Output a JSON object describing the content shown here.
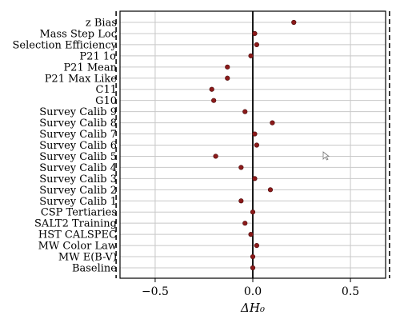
{
  "chart_data": {
    "type": "scatter",
    "title": "",
    "xlabel": "ΔH₀",
    "ylabel": "",
    "xlim": [
      -0.68,
      0.68
    ],
    "xticks": [
      -0.5,
      0.0,
      0.5
    ],
    "xtick_labels": [
      "−0.5",
      "0.0",
      "0.5"
    ],
    "grid": true,
    "reference_lines": [
      {
        "x": -0.7,
        "style": "dashed"
      },
      {
        "x": 0.0,
        "style": "solid"
      },
      {
        "x": 0.7,
        "style": "dashed"
      }
    ],
    "categories": [
      "z Bias",
      "Mass Step Loc",
      "Selection Efficiency",
      "P21 1σ",
      "P21 Mean",
      "P21 Max Like",
      "C11",
      "G10",
      "Survey Calib 9",
      "Survey Calib 8",
      "Survey Calib 7",
      "Survey Calib 6",
      "Survey Calib 5",
      "Survey Calib 4",
      "Survey Calib 3",
      "Survey Calib 2",
      "Survey Calib 1",
      "CSP Tertiaries",
      "SALT2 Training",
      "HST CALSPEC",
      "MW Color Law",
      "MW E(B-V)",
      "Baseline"
    ],
    "values": [
      0.21,
      0.01,
      0.02,
      -0.01,
      -0.13,
      -0.13,
      -0.21,
      -0.2,
      -0.04,
      0.1,
      0.01,
      0.02,
      -0.19,
      -0.06,
      0.01,
      0.09,
      -0.06,
      0.0,
      -0.04,
      -0.01,
      0.02,
      0.0,
      0.0
    ],
    "point_color": "#8b1a1a"
  }
}
